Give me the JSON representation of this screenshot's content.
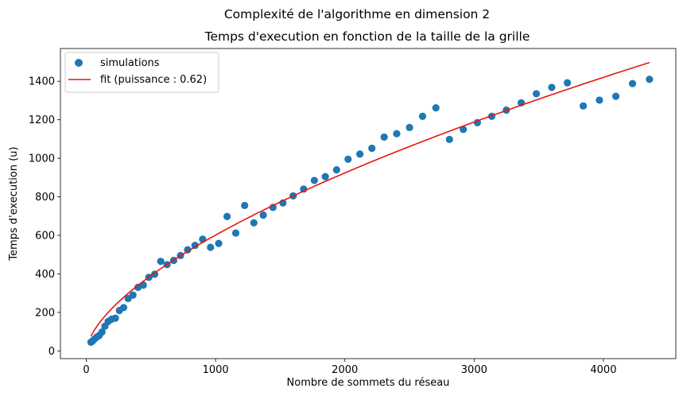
{
  "suptitle": "Complexité de l'algorithme en dimension 2",
  "chart_data": {
    "type": "scatter",
    "title": "Temps d'execution en fonction de la taille de la grille",
    "xlabel": "Nombre de sommets du réseau",
    "ylabel": "Temps d'execution (u)",
    "xlim": [
      -200,
      4560
    ],
    "ylim": [
      -40,
      1570
    ],
    "xticks": [
      0,
      1000,
      2000,
      3000,
      4000
    ],
    "xtick_labels": [
      "0",
      "1000",
      "2000",
      "3000",
      "4000"
    ],
    "yticks": [
      0,
      200,
      400,
      600,
      800,
      1000,
      1200,
      1400
    ],
    "ytick_labels": [
      "0",
      "200",
      "400",
      "600",
      "800",
      "1000",
      "1200",
      "1400"
    ],
    "grid": false,
    "legend_position": "top-left",
    "series": [
      {
        "name": "simulations",
        "kind": "scatter",
        "color": "#1f77b4",
        "points": [
          [
            36,
            45
          ],
          [
            49,
            52
          ],
          [
            64,
            62
          ],
          [
            81,
            72
          ],
          [
            100,
            80
          ],
          [
            121,
            98
          ],
          [
            144,
            128
          ],
          [
            169,
            153
          ],
          [
            196,
            165
          ],
          [
            225,
            170
          ],
          [
            256,
            210
          ],
          [
            289,
            225
          ],
          [
            324,
            272
          ],
          [
            361,
            290
          ],
          [
            400,
            330
          ],
          [
            441,
            342
          ],
          [
            484,
            382
          ],
          [
            529,
            398
          ],
          [
            576,
            465
          ],
          [
            625,
            448
          ],
          [
            676,
            470
          ],
          [
            729,
            495
          ],
          [
            784,
            525
          ],
          [
            841,
            548
          ],
          [
            900,
            580
          ],
          [
            961,
            538
          ],
          [
            1024,
            558
          ],
          [
            1089,
            698
          ],
          [
            1156,
            612
          ],
          [
            1225,
            755
          ],
          [
            1296,
            665
          ],
          [
            1369,
            705
          ],
          [
            1444,
            745
          ],
          [
            1521,
            768
          ],
          [
            1600,
            805
          ],
          [
            1681,
            840
          ],
          [
            1764,
            885
          ],
          [
            1849,
            905
          ],
          [
            1936,
            940
          ],
          [
            2025,
            995
          ],
          [
            2116,
            1022
          ],
          [
            2209,
            1052
          ],
          [
            2304,
            1110
          ],
          [
            2401,
            1128
          ],
          [
            2500,
            1160
          ],
          [
            2601,
            1218
          ],
          [
            2704,
            1262
          ],
          [
            2809,
            1098
          ],
          [
            2916,
            1150
          ],
          [
            3025,
            1185
          ],
          [
            3136,
            1218
          ],
          [
            3249,
            1250
          ],
          [
            3364,
            1288
          ],
          [
            3481,
            1335
          ],
          [
            3600,
            1368
          ],
          [
            3721,
            1392
          ],
          [
            3844,
            1272
          ],
          [
            3969,
            1302
          ],
          [
            4096,
            1322
          ],
          [
            4225,
            1388
          ],
          [
            4356,
            1410
          ]
        ]
      },
      {
        "name": "fit (puissance : 0.62)",
        "kind": "line",
        "color": "#e8150e",
        "model": {
          "form": "power",
          "coef": 8.3,
          "exponent": 0.62
        },
        "x_range": [
          36,
          4356
        ]
      }
    ]
  }
}
